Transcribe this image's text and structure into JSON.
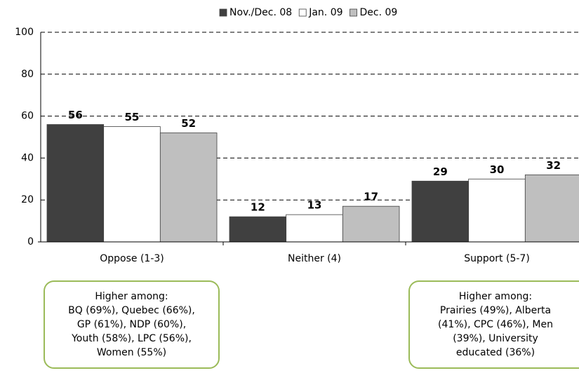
{
  "chart_data": {
    "type": "bar",
    "categories": [
      "Oppose (1-3)",
      "Neither (4)",
      "Support (5-7)"
    ],
    "series": [
      {
        "name": "Nov./Dec. 08",
        "color": "#404040",
        "values": [
          56,
          12,
          29
        ]
      },
      {
        "name": "Jan. 09",
        "color": "#ffffff",
        "values": [
          55,
          13,
          30
        ]
      },
      {
        "name": "Dec. 09",
        "color": "#bfbfbf",
        "values": [
          52,
          17,
          32
        ]
      }
    ],
    "ylim": [
      0,
      100
    ],
    "yticks": [
      0,
      20,
      40,
      60,
      80,
      100
    ],
    "grid": true,
    "legend": "top",
    "annotations": [
      {
        "lines": [
          "Higher among:",
          "BQ (69%), Quebec (66%),",
          "GP (61%), NDP (60%),",
          "Youth (58%), LPC (56%),",
          "Women (55%)"
        ]
      },
      {
        "lines": [
          "Higher among:",
          "Prairies (49%), Alberta",
          "(41%), CPC (46%), Men",
          "(39%), University",
          "educated (36%)"
        ]
      }
    ]
  }
}
